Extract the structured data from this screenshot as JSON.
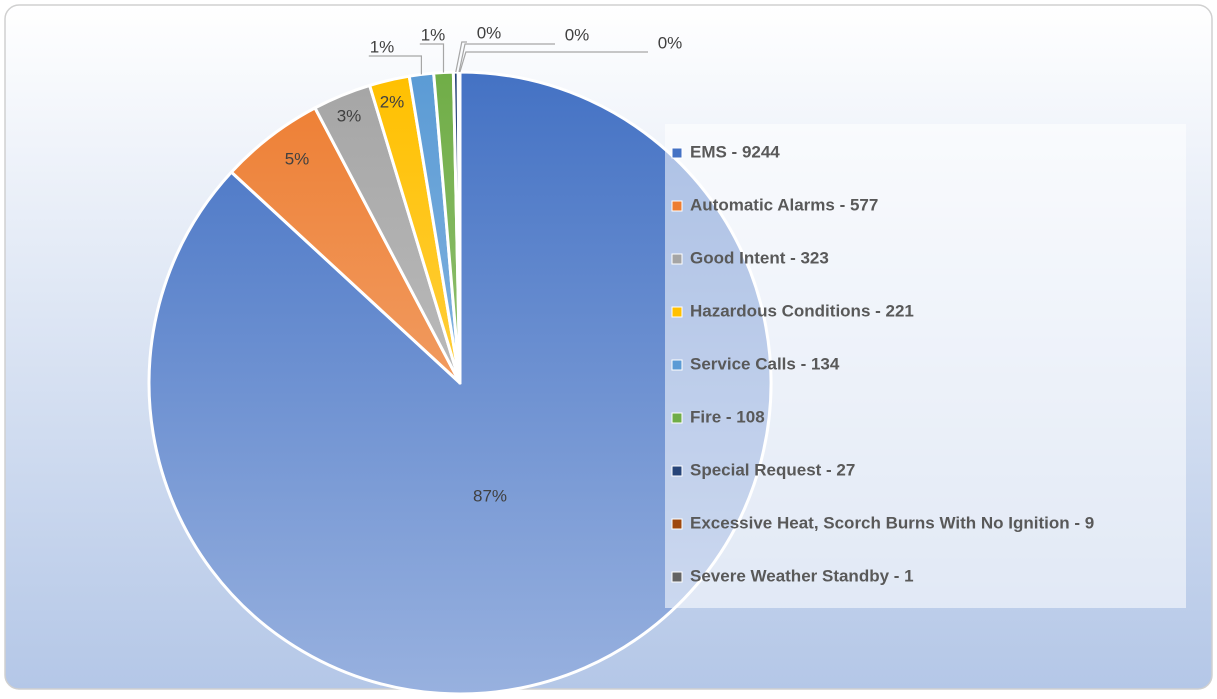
{
  "chart_data": {
    "type": "pie",
    "categories": [
      "EMS - 9244",
      "Automatic Alarms - 577",
      "Good Intent - 323",
      "Hazardous Conditions - 221",
      "Service Calls - 134",
      "Fire - 108",
      "Special Request - 27",
      "Excessive Heat, Scorch Burns With No Ignition - 9",
      "Severe Weather Standby - 1"
    ],
    "values": [
      86.85,
      5.42,
      3.03,
      2.08,
      1.26,
      1.01,
      0.25,
      0.08,
      0.01
    ],
    "value_labels": [
      "87%",
      "5%",
      "3%",
      "2%",
      "1%",
      "1%",
      "0%",
      "0%",
      "0%"
    ],
    "colors": [
      "#4472c4",
      "#ed7d31",
      "#a5a5a5",
      "#ffc000",
      "#5b9bd5",
      "#70ad47",
      "#264478",
      "#9e480e",
      "#636363"
    ],
    "legend": "right"
  }
}
